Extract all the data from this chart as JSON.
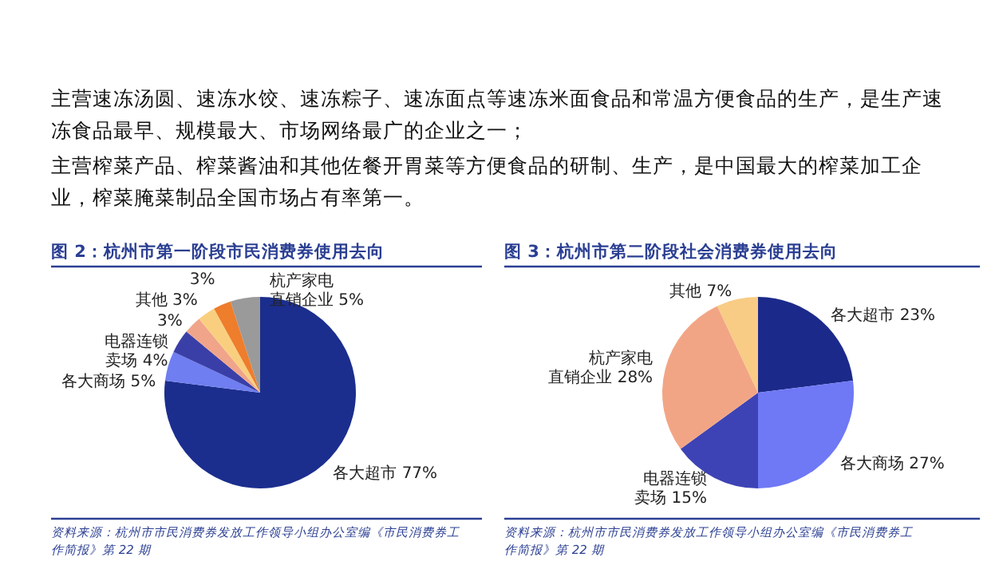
{
  "chart_data": [
    {
      "type": "pie",
      "title": "图 2：杭州市第一阶段市民消费券使用去向",
      "categories": [
        "各大超市",
        "各大商场",
        "电器连锁卖场",
        null,
        "其他",
        null,
        "杭产家电直销企业"
      ],
      "values": [
        77,
        5,
        4,
        3,
        3,
        3,
        5
      ],
      "value_labels": [
        "77%",
        "5%",
        "4%",
        "3%",
        "3%",
        "3%",
        "5%"
      ],
      "colors": [
        "#1b2e8e",
        "#6f7ef0",
        "#3a3fa8",
        "#f0a58a",
        "#f9cf7f",
        "#ee7d2c",
        "#9a9a9a"
      ],
      "annotations": [
        "主营速冻汤圆、速冻水饺、速冻粽子、速冻面点等速冻米面食品和常温方便食品的生产，是生产速冻食品最早、规模最大、市场网络最广的企业之一；",
        "主营榨菜产品、榨菜酱油和其他佐餐开胃菜等方便食品的研制、生产，是中国最大的榨菜加工企业，榨菜腌菜制品全国市场占有率第一。",
        "资料来源：杭州市市民消费券发放工作领导小组办公室编《市民消费券工作简报》第 22 期"
      ]
    },
    {
      "type": "pie",
      "title": "图 3：杭州市第二阶段社会消费券使用去向",
      "categories": [
        "各大超市",
        "各大商场",
        "电器连锁卖场",
        "杭产家电直销企业",
        "其他"
      ],
      "values": [
        23,
        27,
        15,
        28,
        7
      ],
      "value_labels": [
        "23%",
        "27%",
        "15%",
        "28%",
        "7%"
      ],
      "colors": [
        "#1b2a8a",
        "#6f78f5",
        "#3d43b5",
        "#f2a585",
        "#f8cc85"
      ],
      "annotations": [
        "资料来源：杭州市市民消费券发放工作领导小组办公室编《市民消费券工作简报》第 22 期"
      ]
    }
  ]
}
